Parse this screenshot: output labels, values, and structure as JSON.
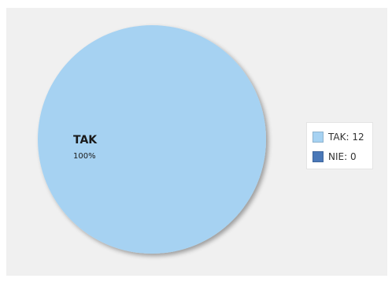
{
  "chart_data": {
    "type": "pie",
    "categories": [
      "TAK",
      "NIE"
    ],
    "values": [
      12,
      0
    ],
    "slice_labels": [
      {
        "name": "TAK",
        "percent": "100%"
      }
    ],
    "legend_entries": [
      {
        "name": "TAK",
        "value": "12"
      },
      {
        "name": "NIE",
        "value": "0"
      }
    ],
    "colors": [
      "#a6d2f2",
      "#4a78b8"
    ],
    "legend_position": "right",
    "background_color": "#f0f0f0"
  }
}
